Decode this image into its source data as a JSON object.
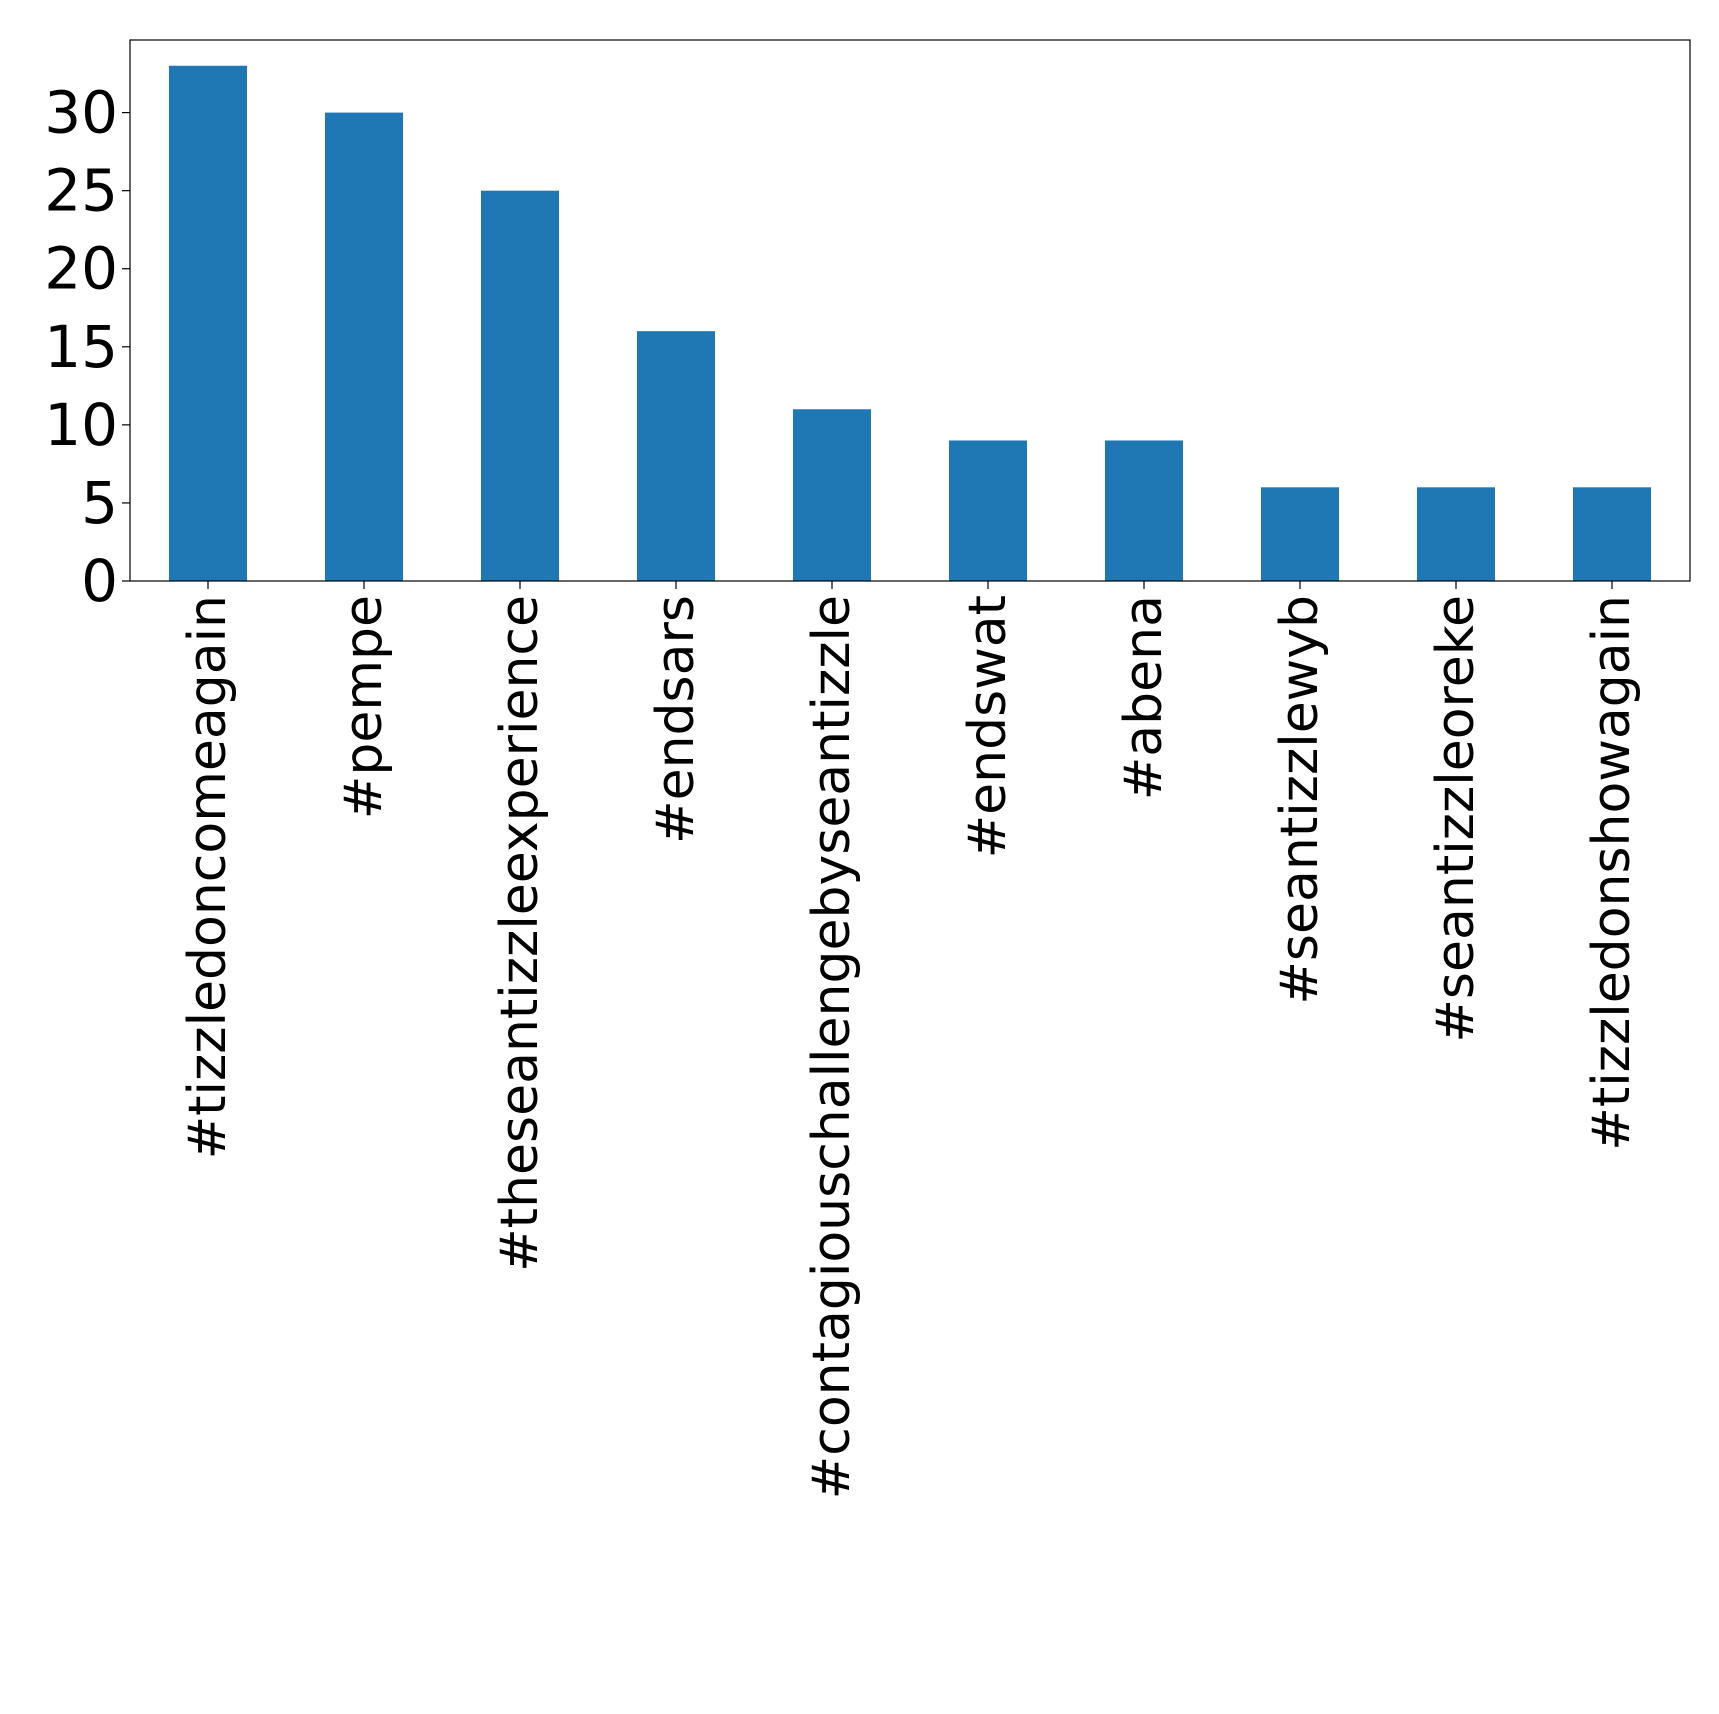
{
  "chart_data": {
    "type": "bar",
    "categories": [
      "#tizzledoncomeagain",
      "#pempe",
      "#theseantizzleexperience",
      "#endsars",
      "#contagiouschallengebyseantizzle",
      "#endswat",
      "#abena",
      "#seantizzlewyb",
      "#seantizzleoreke",
      "#tizzledonshowagain"
    ],
    "values": [
      33,
      30,
      25,
      16,
      11,
      9,
      9,
      6,
      6,
      6
    ],
    "title": "",
    "xlabel": "",
    "ylabel": "",
    "ylim": [
      0,
      34.65
    ],
    "yticks": [
      0,
      5,
      10,
      15,
      20,
      25,
      30
    ],
    "grid": false,
    "legend": "none",
    "bar_color": "#1f77b4"
  }
}
